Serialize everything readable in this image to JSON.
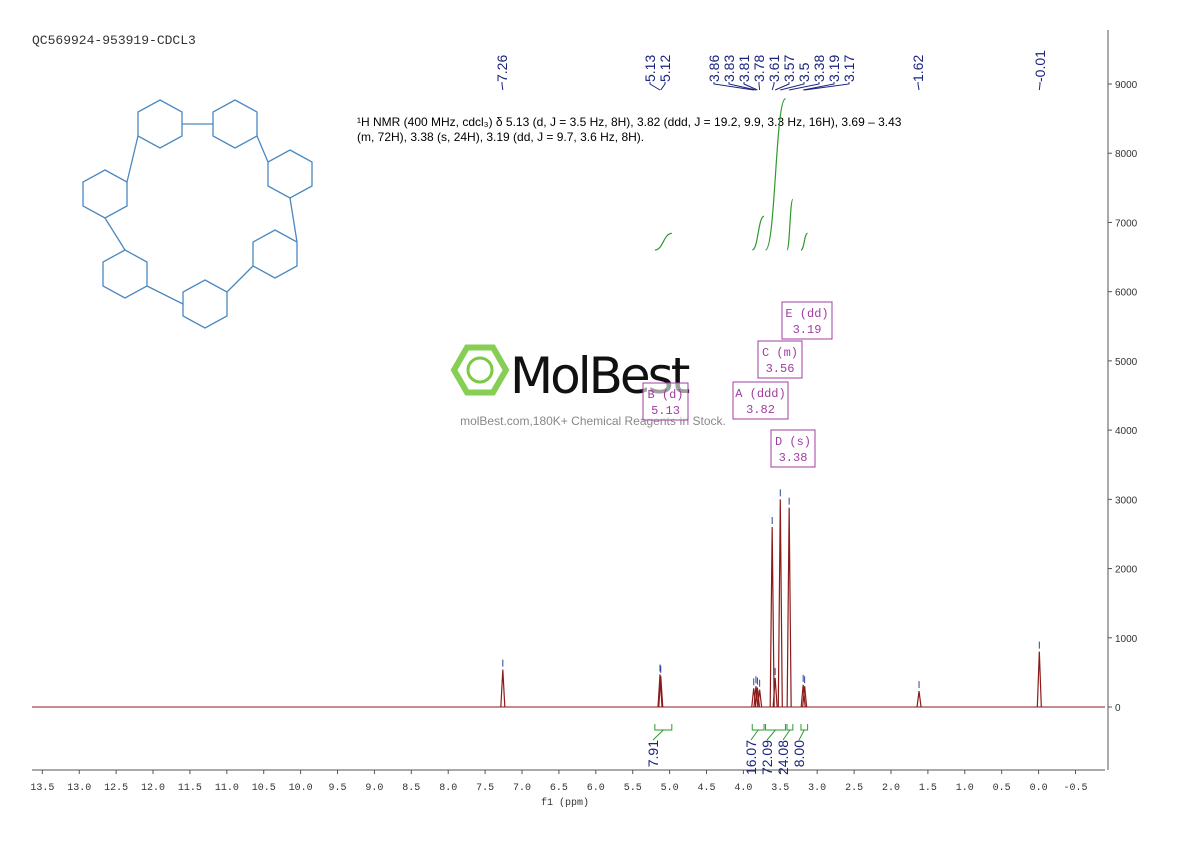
{
  "chart_data": {
    "type": "nmr",
    "title": "QC569924-953919-CDCL3",
    "xlabel": "f1 (ppm)",
    "xlim": [
      13.64,
      -0.9
    ],
    "xticks": [
      13.5,
      {
        "value": 13,
        "label": "13.0"
      },
      12.5,
      {
        "value": 12,
        "label": "12.0"
      },
      11.5,
      {
        "value": 11,
        "label": "11.0"
      },
      10.5,
      {
        "value": 10,
        "label": "10.0"
      },
      9.5,
      {
        "value": 9,
        "label": "9.0"
      },
      8.5,
      {
        "value": 8,
        "label": "8.0"
      },
      7.5,
      {
        "value": 7,
        "label": "7.0"
      },
      6.5,
      {
        "value": 6,
        "label": "6.0"
      },
      5.5,
      {
        "value": 5,
        "label": "5.0"
      },
      4.5,
      {
        "value": 4,
        "label": "4.0"
      },
      3.5,
      {
        "value": 3,
        "label": "3.0"
      },
      2.5,
      {
        "value": 2,
        "label": "2.0"
      },
      1.5,
      {
        "value": 1,
        "label": "1.0"
      },
      0.5,
      {
        "value": 0,
        "label": "0.0"
      },
      -0.5
    ],
    "ylim": [
      -910,
      9780
    ],
    "yticks": [
      0,
      1000,
      2000,
      3000,
      4000,
      5000,
      6000,
      7000,
      8000,
      9000
    ],
    "color": "#8b1a1a",
    "x": [
      7.26,
      5.13,
      5.12,
      3.86,
      3.83,
      3.81,
      3.78,
      3.61,
      3.57,
      3.5,
      3.38,
      3.19,
      3.17,
      1.62,
      -0.01
    ],
    "values": [
      540,
      470,
      450,
      270,
      300,
      280,
      250,
      2600,
      420,
      3000,
      2880,
      320,
      300,
      230,
      800
    ],
    "annotation": "¹H NMR (400 MHz, cdcl₃) δ 5.13 (d, J = 3.5 Hz, 8H), 3.82 (ddd, J = 19.2, 9.9, 3.3 Hz, 16H), 3.69 – 3.43 (m, 72H), 3.38 (s, 24H), 3.19 (dd, J = 9.7, 3.6 Hz, 8H).",
    "integrals": {
      "ranges": [
        [
          5.2,
          4.97
        ],
        [
          3.88,
          3.72
        ],
        [
          3.7,
          3.43
        ],
        [
          3.41,
          3.33
        ],
        [
          3.22,
          3.13
        ]
      ],
      "values": [
        7.91,
        16.07,
        72.09,
        24.08,
        8
      ],
      "value_labels": [
        "7.91",
        "16.07",
        "72.09",
        "24.08",
        "8.00"
      ],
      "color": "#2e9a2e"
    },
    "multiplets": [
      {
        "label": "B (d)",
        "shift": 5.13
      },
      {
        "label": "A (ddd)",
        "shift": 3.82
      },
      {
        "label": "C (m)",
        "shift": 3.56
      },
      {
        "label": "D (s)",
        "shift": 3.38
      },
      {
        "label": "E (dd)",
        "shift": 3.19
      }
    ]
  },
  "watermark": {
    "brand": "MolBest",
    "slogan": "molBest.com,180K+ Chemical Reagents In Stock."
  }
}
